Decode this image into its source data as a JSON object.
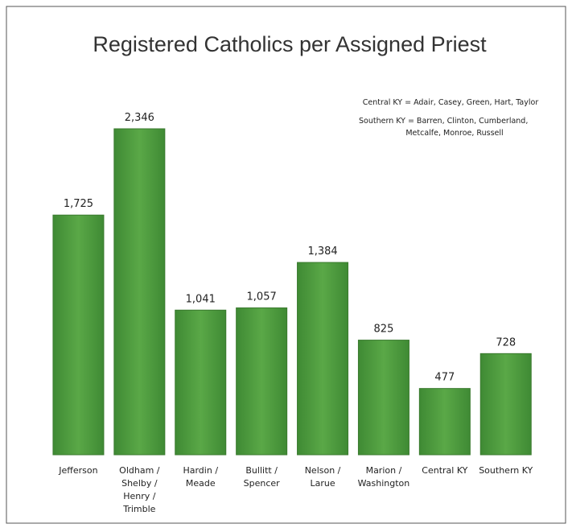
{
  "chart_data": {
    "type": "bar",
    "title": "Registered Catholics per Assigned Priest",
    "annotations": [
      "Central KY = Adair, Casey, Green, Hart, Taylor",
      "Southern KY = Barren, Clinton, Cumberland,",
      "Metcalfe, Monroe, Russell"
    ],
    "categories": [
      "Jefferson",
      "Oldham /\nShelby /\nHenry /\nTrimble",
      "Hardin /\nMeade",
      "Bullitt /\nSpencer",
      "Nelson /\nLarue",
      "Marion /\nWashington",
      "Central KY",
      "Southern KY"
    ],
    "values": [
      1725,
      2346,
      1041,
      1057,
      1384,
      825,
      477,
      728
    ],
    "value_labels": [
      "1,725",
      "2,346",
      "1,041",
      "1,057",
      "1,384",
      "825",
      "477",
      "728"
    ],
    "color": "#4f9d3f"
  }
}
